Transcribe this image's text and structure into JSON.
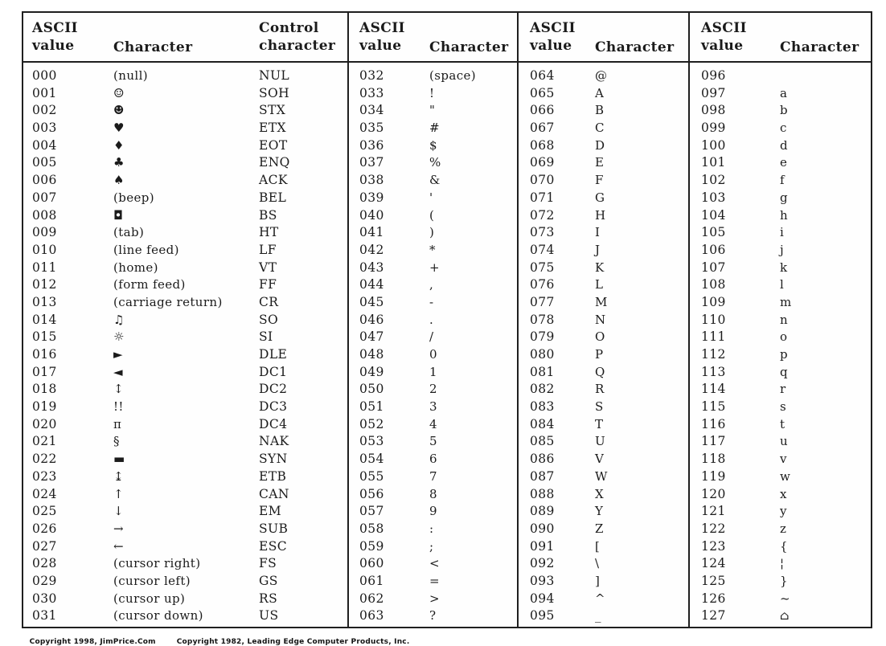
{
  "table": {
    "groups": [
      {
        "name": "control-characters-000-031",
        "headers": [
          {
            "line1": "ASCII",
            "line2": "value"
          },
          {
            "line1": "",
            "line2": "Character"
          },
          {
            "line1": "Control",
            "line2": "character"
          }
        ],
        "rows": [
          [
            "000",
            "(null)",
            "NUL"
          ],
          [
            "001",
            "☺",
            "SOH"
          ],
          [
            "002",
            "☻",
            "STX"
          ],
          [
            "003",
            "♥",
            "ETX"
          ],
          [
            "004",
            "♦",
            "EOT"
          ],
          [
            "005",
            "♣",
            "ENQ"
          ],
          [
            "006",
            "♠",
            "ACK"
          ],
          [
            "007",
            "(beep)",
            "BEL"
          ],
          [
            "008",
            "◘",
            "BS"
          ],
          [
            "009",
            "(tab)",
            "HT"
          ],
          [
            "010",
            "(line feed)",
            "LF"
          ],
          [
            "011",
            "(home)",
            "VT"
          ],
          [
            "012",
            "(form feed)",
            "FF"
          ],
          [
            "013",
            "(carriage return)",
            "CR"
          ],
          [
            "014",
            "♫",
            "SO"
          ],
          [
            "015",
            "☼",
            "SI"
          ],
          [
            "016",
            "►",
            "DLE"
          ],
          [
            "017",
            "◄",
            "DC1"
          ],
          [
            "018",
            "↕",
            "DC2"
          ],
          [
            "019",
            "!!",
            "DC3"
          ],
          [
            "020",
            "π",
            "DC4"
          ],
          [
            "021",
            "§",
            "NAK"
          ],
          [
            "022",
            "▬",
            "SYN"
          ],
          [
            "023",
            "↨",
            "ETB"
          ],
          [
            "024",
            "↑",
            "CAN"
          ],
          [
            "025",
            "↓",
            "EM"
          ],
          [
            "026",
            "→",
            "SUB"
          ],
          [
            "027",
            "←",
            "ESC"
          ],
          [
            "028",
            "(cursor right)",
            "FS"
          ],
          [
            "029",
            "(cursor left)",
            "GS"
          ],
          [
            "030",
            "(cursor up)",
            "RS"
          ],
          [
            "031",
            "(cursor down)",
            "US"
          ]
        ]
      },
      {
        "name": "characters-032-063",
        "headers": [
          {
            "line1": "ASCII",
            "line2": "value"
          },
          {
            "line1": "",
            "line2": "Character"
          }
        ],
        "rows": [
          [
            "032",
            "(space)"
          ],
          [
            "033",
            "!"
          ],
          [
            "034",
            "\""
          ],
          [
            "035",
            "#"
          ],
          [
            "036",
            "$"
          ],
          [
            "037",
            "%"
          ],
          [
            "038",
            "&"
          ],
          [
            "039",
            "'"
          ],
          [
            "040",
            "("
          ],
          [
            "041",
            ")"
          ],
          [
            "042",
            "*"
          ],
          [
            "043",
            "+"
          ],
          [
            "044",
            ","
          ],
          [
            "045",
            "-"
          ],
          [
            "046",
            "."
          ],
          [
            "047",
            "/"
          ],
          [
            "048",
            "0"
          ],
          [
            "049",
            "1"
          ],
          [
            "050",
            "2"
          ],
          [
            "051",
            "3"
          ],
          [
            "052",
            "4"
          ],
          [
            "053",
            "5"
          ],
          [
            "054",
            "6"
          ],
          [
            "055",
            "7"
          ],
          [
            "056",
            "8"
          ],
          [
            "057",
            "9"
          ],
          [
            "058",
            ":"
          ],
          [
            "059",
            ";"
          ],
          [
            "060",
            "<"
          ],
          [
            "061",
            "="
          ],
          [
            "062",
            ">"
          ],
          [
            "063",
            "?"
          ]
        ]
      },
      {
        "name": "characters-064-095",
        "headers": [
          {
            "line1": "ASCII",
            "line2": "value"
          },
          {
            "line1": "",
            "line2": "Character"
          }
        ],
        "rows": [
          [
            "064",
            "@"
          ],
          [
            "065",
            "A"
          ],
          [
            "066",
            "B"
          ],
          [
            "067",
            "C"
          ],
          [
            "068",
            "D"
          ],
          [
            "069",
            "E"
          ],
          [
            "070",
            "F"
          ],
          [
            "071",
            "G"
          ],
          [
            "072",
            "H"
          ],
          [
            "073",
            "I"
          ],
          [
            "074",
            "J"
          ],
          [
            "075",
            "K"
          ],
          [
            "076",
            "L"
          ],
          [
            "077",
            "M"
          ],
          [
            "078",
            "N"
          ],
          [
            "079",
            "O"
          ],
          [
            "080",
            "P"
          ],
          [
            "081",
            "Q"
          ],
          [
            "082",
            "R"
          ],
          [
            "083",
            "S"
          ],
          [
            "084",
            "T"
          ],
          [
            "085",
            "U"
          ],
          [
            "086",
            "V"
          ],
          [
            "087",
            "W"
          ],
          [
            "088",
            "X"
          ],
          [
            "089",
            "Y"
          ],
          [
            "090",
            "Z"
          ],
          [
            "091",
            "["
          ],
          [
            "092",
            "\\"
          ],
          [
            "093",
            "]"
          ],
          [
            "094",
            "^"
          ],
          [
            "095",
            "_"
          ]
        ]
      },
      {
        "name": "characters-096-127",
        "headers": [
          {
            "line1": "ASCII",
            "line2": "value"
          },
          {
            "line1": "",
            "line2": "Character"
          }
        ],
        "rows": [
          [
            "096",
            ""
          ],
          [
            "097",
            "a"
          ],
          [
            "098",
            "b"
          ],
          [
            "099",
            "c"
          ],
          [
            "100",
            "d"
          ],
          [
            "101",
            "e"
          ],
          [
            "102",
            "f"
          ],
          [
            "103",
            "g"
          ],
          [
            "104",
            "h"
          ],
          [
            "105",
            "i"
          ],
          [
            "106",
            "j"
          ],
          [
            "107",
            "k"
          ],
          [
            "108",
            "l"
          ],
          [
            "109",
            "m"
          ],
          [
            "110",
            "n"
          ],
          [
            "111",
            "o"
          ],
          [
            "112",
            "p"
          ],
          [
            "113",
            "q"
          ],
          [
            "114",
            "r"
          ],
          [
            "115",
            "s"
          ],
          [
            "116",
            "t"
          ],
          [
            "117",
            "u"
          ],
          [
            "118",
            "v"
          ],
          [
            "119",
            "w"
          ],
          [
            "120",
            "x"
          ],
          [
            "121",
            "y"
          ],
          [
            "122",
            "z"
          ],
          [
            "123",
            "{"
          ],
          [
            "124",
            "¦"
          ],
          [
            "125",
            "}"
          ],
          [
            "126",
            "~"
          ],
          [
            "127",
            "⌂"
          ]
        ]
      }
    ]
  },
  "footer": {
    "copyright_left": "Copyright 1998, JimPrice.Com",
    "copyright_right": "Copyright 1982, Leading Edge Computer Products, Inc."
  }
}
